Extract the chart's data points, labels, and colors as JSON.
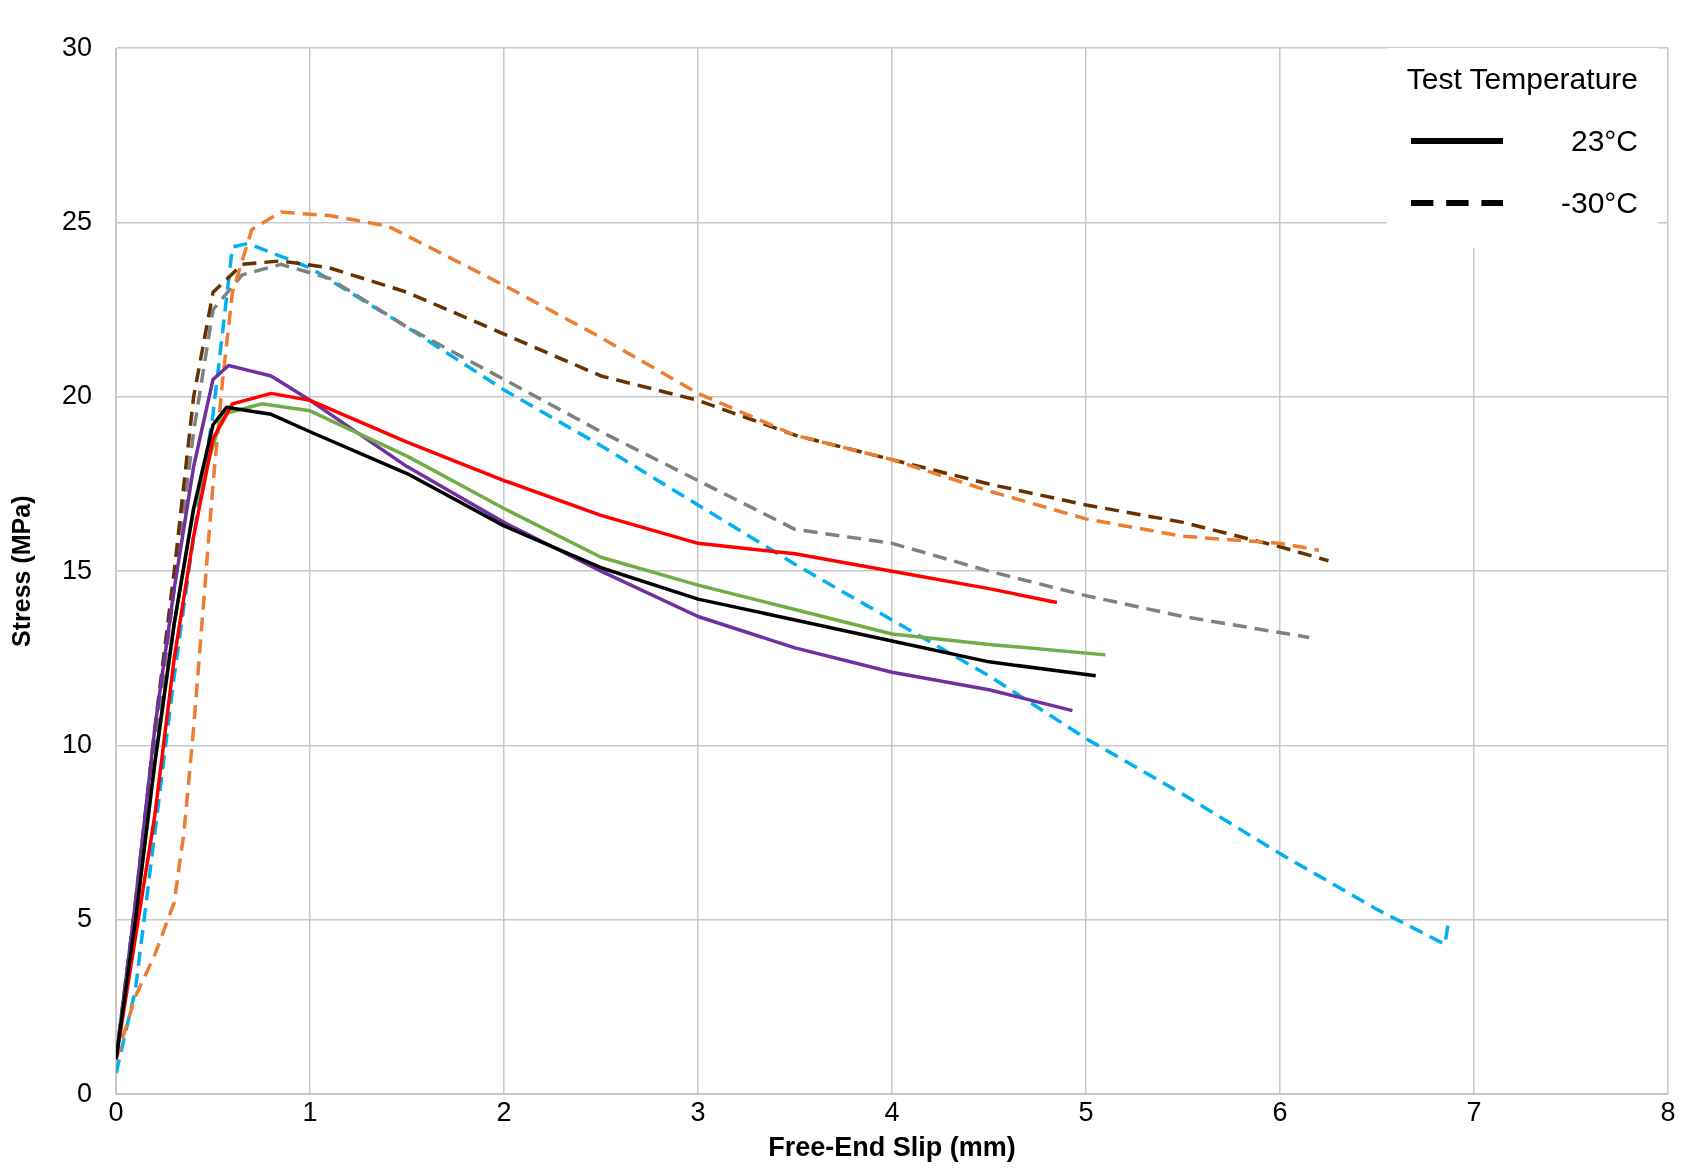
{
  "chart_data": {
    "type": "line",
    "xlabel": "Free-End Slip (mm)",
    "ylabel": "Stress (MPa)",
    "legend_title": "Test Temperature",
    "legend": "top right",
    "grid": true,
    "marker": "none",
    "xlim": [
      0,
      8
    ],
    "xticks": [
      0,
      1,
      2,
      3,
      4,
      5,
      6,
      7,
      8
    ],
    "ylim": [
      0,
      30
    ],
    "yticks": [
      0,
      5,
      10,
      15,
      20,
      25,
      30
    ],
    "series": [
      {
        "color": "#000000",
        "line_style": "solid",
        "x": [
          0,
          0.1,
          0.2,
          0.3,
          0.4,
          0.5,
          0.57,
          0.8,
          1,
          1.5,
          2,
          2.5,
          3,
          3.5,
          4,
          4.5,
          5.05
        ],
        "values": [
          1,
          5,
          9.5,
          13.5,
          16.8,
          19.2,
          19.7,
          19.5,
          19,
          17.8,
          16.3,
          15.1,
          14.2,
          13.6,
          13,
          12.4,
          12
        ]
      },
      {
        "color": "#ff0000",
        "line_style": "solid",
        "x": [
          0,
          0.1,
          0.2,
          0.3,
          0.4,
          0.5,
          0.6,
          0.8,
          1,
          1.5,
          2,
          2.5,
          3,
          3.5,
          4,
          4.5,
          4.85
        ],
        "values": [
          1,
          4.5,
          8,
          12.5,
          16,
          18.8,
          19.8,
          20.1,
          19.9,
          18.7,
          17.6,
          16.6,
          15.8,
          15.5,
          15,
          14.5,
          14.1
        ]
      },
      {
        "color": "#70ad47",
        "line_style": "solid",
        "x": [
          0,
          0.1,
          0.2,
          0.3,
          0.4,
          0.55,
          0.75,
          1,
          1.5,
          2,
          2.5,
          3,
          3.5,
          4,
          4.5,
          5.1
        ],
        "values": [
          1,
          5,
          9.5,
          13.5,
          16.8,
          19.5,
          19.8,
          19.6,
          18.3,
          16.8,
          15.4,
          14.6,
          13.9,
          13.2,
          12.9,
          12.6
        ]
      },
      {
        "color": "#7030a0",
        "line_style": "solid",
        "x": [
          0,
          0.1,
          0.2,
          0.3,
          0.4,
          0.5,
          0.58,
          0.8,
          1,
          1.5,
          2,
          2.5,
          3,
          3.5,
          4,
          4.5,
          4.93
        ],
        "values": [
          1,
          5.5,
          10.5,
          14.5,
          18,
          20.5,
          20.9,
          20.6,
          19.9,
          18,
          16.4,
          15,
          13.7,
          12.8,
          12.1,
          11.6,
          11
        ]
      },
      {
        "color": "#ed7d31",
        "line_style": "dashed",
        "x": [
          0,
          0.1,
          0.2,
          0.3,
          0.35,
          0.4,
          0.45,
          0.5,
          0.55,
          0.6,
          0.7,
          0.85,
          1.1,
          1.4,
          2,
          2.5,
          3,
          3.5,
          4,
          4.5,
          5,
          5.5,
          6,
          6.2
        ],
        "values": [
          1,
          2.8,
          4,
          5.5,
          7.5,
          10.5,
          14,
          17.5,
          20.5,
          23,
          24.8,
          25.3,
          25.2,
          24.9,
          23.2,
          21.7,
          20.1,
          18.9,
          18.2,
          17.3,
          16.5,
          16,
          15.8,
          15.6
        ]
      },
      {
        "color": "#663300",
        "line_style": "dashed",
        "x": [
          0,
          0.1,
          0.2,
          0.3,
          0.4,
          0.5,
          0.65,
          0.85,
          1.1,
          1.5,
          2,
          2.5,
          3,
          3.5,
          4,
          4.5,
          5,
          5.5,
          6,
          6.25
        ],
        "values": [
          1,
          5.5,
          10.5,
          15,
          20,
          23,
          23.8,
          23.9,
          23.7,
          23,
          21.8,
          20.6,
          19.9,
          18.9,
          18.2,
          17.5,
          16.9,
          16.4,
          15.7,
          15.3
        ]
      },
      {
        "color": "#808080",
        "line_style": "dashed",
        "x": [
          0,
          0.1,
          0.2,
          0.3,
          0.4,
          0.5,
          0.65,
          0.85,
          1.1,
          1.5,
          2,
          2.5,
          3,
          3.5,
          4,
          4.5,
          5,
          5.5,
          6.15
        ],
        "values": [
          1,
          5,
          10,
          14.5,
          19,
          22.5,
          23.5,
          23.8,
          23.4,
          22,
          20.5,
          19,
          17.6,
          16.2,
          15.8,
          15,
          14.3,
          13.7,
          13.1
        ]
      },
      {
        "color": "#00b0f0",
        "line_style": "dashed",
        "x": [
          0,
          0.1,
          0.2,
          0.3,
          0.4,
          0.5,
          0.6,
          0.68,
          1,
          1.5,
          2,
          2.5,
          3,
          3.5,
          4,
          4.5,
          5,
          5.5,
          6,
          6.5,
          6.85,
          6.87
        ],
        "values": [
          0.6,
          3,
          7.5,
          12,
          16,
          19.5,
          24.3,
          24.4,
          23.7,
          22,
          20.2,
          18.6,
          16.9,
          15.2,
          13.6,
          12,
          10.2,
          8.6,
          6.9,
          5.3,
          4.3,
          5
        ]
      },
      {
        "name": "23°C",
        "color": "#000000",
        "line_style": "solid"
      },
      {
        "name": "-30°C",
        "color": "#000000",
        "line_style": "dashed"
      }
    ]
  }
}
